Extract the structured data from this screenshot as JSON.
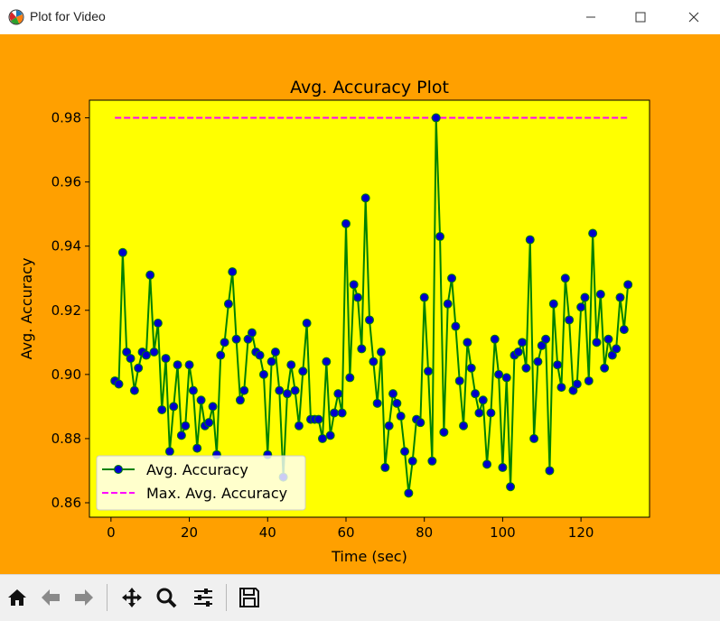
{
  "window": {
    "title": "Plot for Video",
    "controls": [
      "minimize-icon",
      "maximize-icon",
      "close-icon"
    ]
  },
  "colors": {
    "figure_bg": "#ffa000",
    "axes_bg": "#ffff00",
    "line": "#008000",
    "marker": "#0000cc",
    "max_line": "#ff00ff"
  },
  "toolbar": {
    "buttons": [
      "home-icon",
      "back-icon",
      "forward-icon",
      "pan-icon",
      "zoom-icon",
      "configure-subplots-icon",
      "save-icon"
    ]
  },
  "chart_data": {
    "type": "line",
    "title": "Avg. Accuracy Plot",
    "xlabel": "Time (sec)",
    "ylabel": "Avg. Accuracy",
    "xlim": [
      -5.5,
      137.5
    ],
    "ylim": [
      0.8555,
      0.9855
    ],
    "xticks": [
      0,
      20,
      40,
      60,
      80,
      100,
      120
    ],
    "xtick_labels": [
      "0",
      "20",
      "40",
      "60",
      "80",
      "100",
      "120"
    ],
    "yticks": [
      0.86,
      0.88,
      0.9,
      0.92,
      0.94,
      0.96,
      0.98
    ],
    "ytick_labels": [
      "0.86",
      "0.88",
      "0.90",
      "0.92",
      "0.94",
      "0.96",
      "0.98"
    ],
    "grid": false,
    "legend_position": "lower left",
    "series": [
      {
        "name": "Avg. Accuracy",
        "style": "solid line with circle markers",
        "x": [
          1,
          2,
          3,
          4,
          5,
          6,
          7,
          8,
          9,
          10,
          11,
          12,
          13,
          14,
          15,
          16,
          17,
          18,
          19,
          20,
          21,
          22,
          23,
          24,
          25,
          26,
          27,
          28,
          29,
          30,
          31,
          32,
          33,
          34,
          35,
          36,
          37,
          38,
          39,
          40,
          41,
          42,
          43,
          44,
          45,
          46,
          47,
          48,
          49,
          50,
          51,
          52,
          53,
          54,
          55,
          56,
          57,
          58,
          59,
          60,
          61,
          62,
          63,
          64,
          65,
          66,
          67,
          68,
          69,
          70,
          71,
          72,
          73,
          74,
          75,
          76,
          77,
          78,
          79,
          80,
          81,
          82,
          83,
          84,
          85,
          86,
          87,
          88,
          89,
          90,
          91,
          92,
          93,
          94,
          95,
          96,
          97,
          98,
          99,
          100,
          101,
          102,
          103,
          104,
          105,
          106,
          107,
          108,
          109,
          110,
          111,
          112,
          113,
          114,
          115,
          116,
          117,
          118,
          119,
          120,
          121,
          122,
          123,
          124,
          125,
          126,
          127,
          128,
          129,
          130,
          131,
          132
        ],
        "y": [
          0.898,
          0.897,
          0.938,
          0.907,
          0.905,
          0.895,
          0.902,
          0.907,
          0.906,
          0.931,
          0.907,
          0.916,
          0.889,
          0.905,
          0.876,
          0.89,
          0.903,
          0.881,
          0.884,
          0.903,
          0.895,
          0.877,
          0.892,
          0.884,
          0.885,
          0.89,
          0.875,
          0.906,
          0.91,
          0.922,
          0.932,
          0.911,
          0.892,
          0.895,
          0.911,
          0.913,
          0.907,
          0.906,
          0.9,
          0.875,
          0.904,
          0.907,
          0.895,
          0.868,
          0.894,
          0.903,
          0.895,
          0.884,
          0.901,
          0.916,
          0.886,
          0.886,
          0.886,
          0.88,
          0.904,
          0.881,
          0.888,
          0.894,
          0.888,
          0.947,
          0.899,
          0.928,
          0.924,
          0.908,
          0.955,
          0.917,
          0.904,
          0.891,
          0.907,
          0.871,
          0.884,
          0.894,
          0.891,
          0.887,
          0.876,
          0.863,
          0.873,
          0.886,
          0.885,
          0.924,
          0.901,
          0.873,
          0.98,
          0.943,
          0.882,
          0.922,
          0.93,
          0.915,
          0.898,
          0.884,
          0.91,
          0.902,
          0.894,
          0.888,
          0.892,
          0.872,
          0.888,
          0.911,
          0.9,
          0.871,
          0.899,
          0.865,
          0.906,
          0.907,
          0.91,
          0.902,
          0.942,
          0.88,
          0.904,
          0.909,
          0.911,
          0.87,
          0.922,
          0.903,
          0.896,
          0.93,
          0.917,
          0.895,
          0.897,
          0.921,
          0.924,
          0.898,
          0.944,
          0.91,
          0.925,
          0.902,
          0.911,
          0.906,
          0.908,
          0.924,
          0.914,
          0.928
        ]
      },
      {
        "name": "Max. Avg. Accuracy",
        "style": "dashed line",
        "x": [
          1,
          132
        ],
        "y": [
          0.98,
          0.98
        ]
      }
    ]
  }
}
